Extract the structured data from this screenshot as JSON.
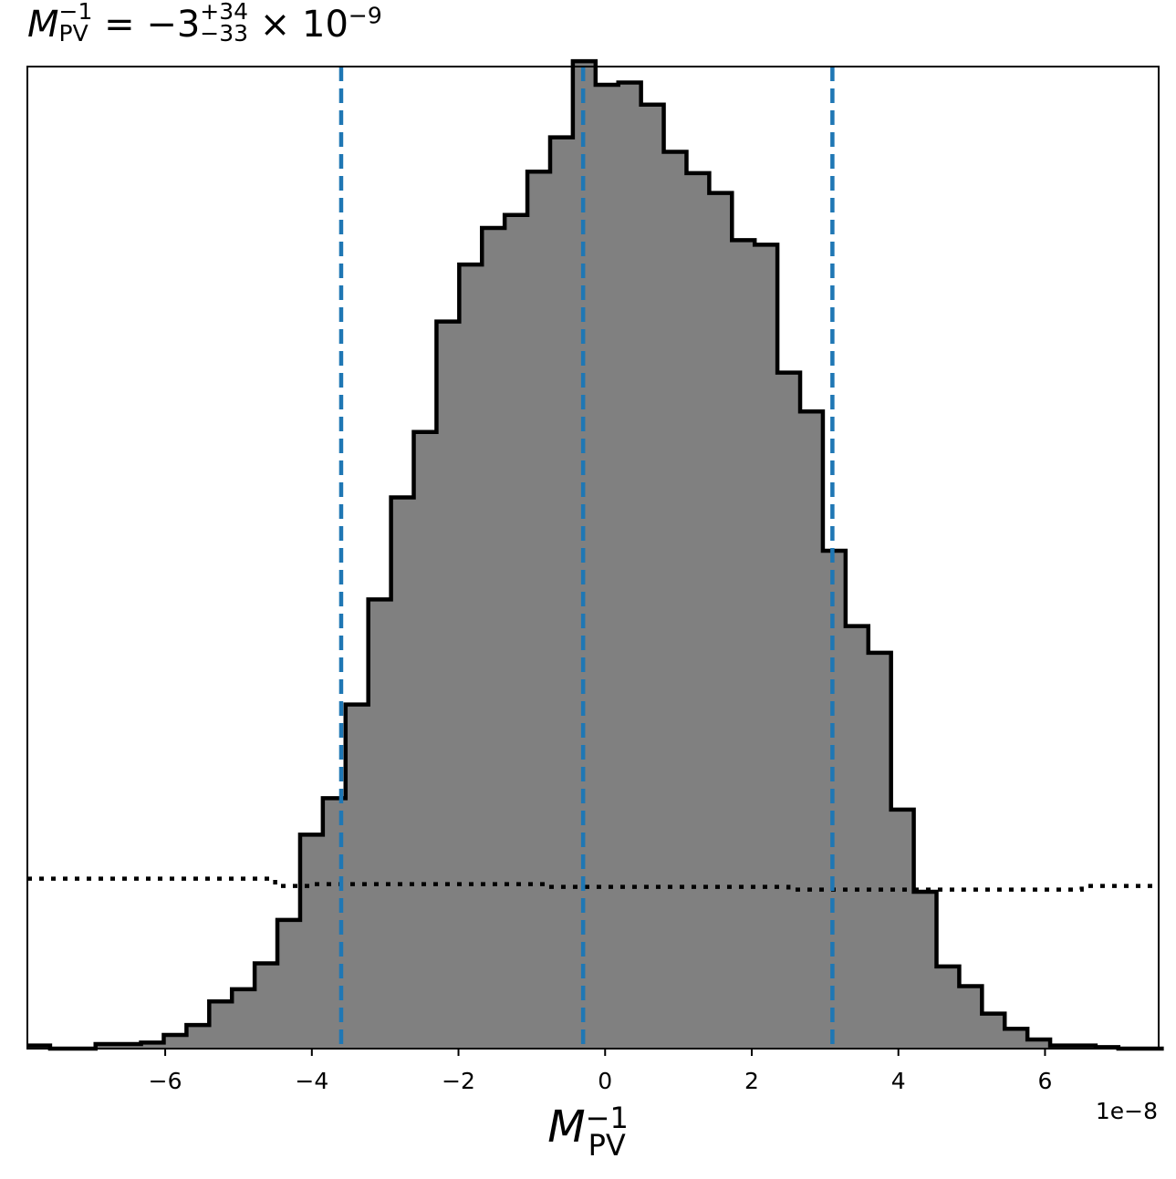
{
  "chart_data": {
    "type": "histogram",
    "title": {
      "symbol": "M",
      "superscript": "−1",
      "subscript": "PV",
      "equals": "=",
      "value": "−3",
      "plus_err": "+34",
      "minus_err": "−33",
      "multiplier": "× 10",
      "multiplier_exp": "−9"
    },
    "xlabel": {
      "symbol": "M",
      "superscript": "−1",
      "subscript": "PV"
    },
    "x_offset_label": "1e−8",
    "xlim": [
      -7.88,
      7.55
    ],
    "ylim": [
      0,
      1.075
    ],
    "x_ticks": [
      -6,
      -4,
      -2,
      0,
      2,
      4,
      6
    ],
    "x_tick_labels": [
      "−6",
      "−4",
      "−2",
      "0",
      "2",
      "4",
      "6"
    ],
    "hist": {
      "bin_start": -7.88,
      "bin_width": 0.31,
      "counts": [
        0.004,
        0.0,
        0.0,
        0.006,
        0.006,
        0.008,
        0.018,
        0.031,
        0.062,
        0.078,
        0.112,
        0.169,
        0.281,
        0.329,
        0.452,
        0.59,
        0.724,
        0.81,
        0.955,
        1.03,
        1.078,
        1.095,
        1.152,
        1.197,
        1.297,
        1.266,
        1.269,
        1.24,
        1.178,
        1.15,
        1.124,
        1.062,
        1.056,
        0.888,
        0.837,
        0.654,
        0.555,
        0.52,
        0.314,
        0.206,
        0.108,
        0.082,
        0.046,
        0.026,
        0.012,
        0.004,
        0.004,
        0.002,
        0.0,
        0.0
      ],
      "scale": 1.2,
      "fill_color": "#808080",
      "edge_color": "#000000"
    },
    "vlines": {
      "values": [
        -3.6,
        -0.3,
        3.1
      ],
      "color": "#1f77b4",
      "style": "dashed"
    },
    "prior_line": {
      "x": [
        -7.88,
        -4.5,
        -4.5,
        -4.0,
        -4.0,
        -0.8,
        -0.8,
        2.5,
        2.5,
        6.5,
        6.5,
        7.55
      ],
      "y": [
        0.186,
        0.186,
        0.178,
        0.178,
        0.18,
        0.18,
        0.177,
        0.177,
        0.174,
        0.174,
        0.178,
        0.178
      ],
      "color": "#000000",
      "style": "dotted"
    }
  }
}
